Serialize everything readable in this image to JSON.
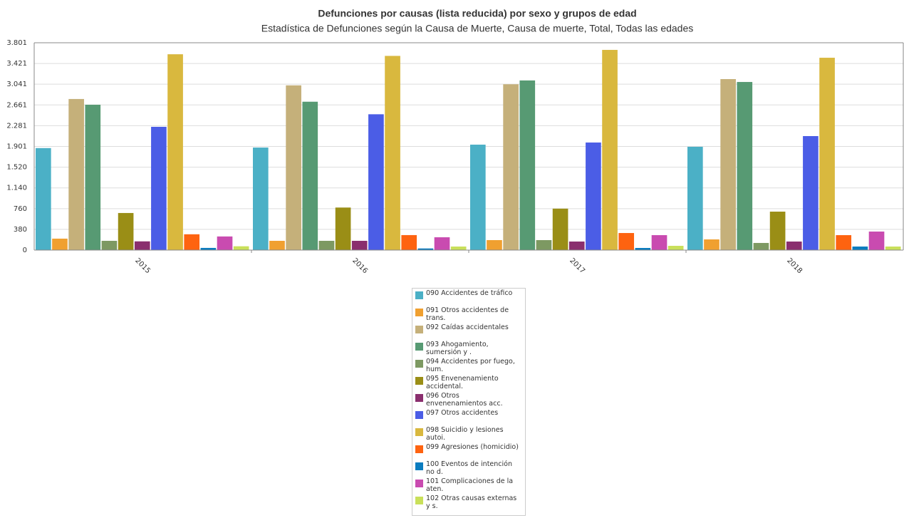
{
  "chart_data": {
    "type": "bar",
    "title": "Defunciones por causas (lista reducida) por sexo y grupos de edad",
    "subtitle": "Estadística de Defunciones según la Causa de Muerte, Causa de muerte, Total, Todas las edades",
    "categories": [
      "2015",
      "2016",
      "2017",
      "2018"
    ],
    "ylim": [
      0,
      3801
    ],
    "yticks": [
      0,
      380,
      760,
      {
        "value": 1140,
        "label": "1.140"
      },
      {
        "value": 1520,
        "label": "1.520"
      },
      {
        "value": 1901,
        "label": "1.901"
      },
      {
        "value": 2281,
        "label": "2.281"
      },
      {
        "value": 2661,
        "label": "2.661"
      },
      {
        "value": 3041,
        "label": "3.041"
      },
      {
        "value": 3421,
        "label": "3.421"
      },
      {
        "value": 3801,
        "label": "3.801"
      }
    ],
    "grid": true,
    "series": [
      {
        "name": "090  Accidentes de tráfico",
        "color": "#4bb0c6",
        "values": [
          1870,
          1880,
          1933,
          1894
        ]
      },
      {
        "name": "091  Otros accidentes de trans.",
        "color": "#f0a030",
        "values": [
          210,
          170,
          183,
          196
        ]
      },
      {
        "name": "092  Caídas accidentales",
        "color": "#c5b07a",
        "values": [
          2770,
          3020,
          3040,
          3135
        ]
      },
      {
        "name": "093 Ahogamiento, sumersión y .",
        "color": "#579a73",
        "values": [
          2665,
          2720,
          3110,
          3082
        ]
      },
      {
        "name": "094 Accidentes por fuego, hum.",
        "color": "#7d9962",
        "values": [
          170,
          170,
          183,
          131
        ]
      },
      {
        "name": "095 Envenenamiento accidental.",
        "color": "#9a8e16",
        "values": [
          680,
          780,
          760,
          705
        ]
      },
      {
        "name": "096 Otros envenenamientos acc.",
        "color": "#8a2f6e",
        "values": [
          160,
          170,
          157,
          157
        ]
      },
      {
        "name": "097  Otros accidentes",
        "color": "#4b5de6",
        "values": [
          2260,
          2490,
          1972,
          2090
        ]
      },
      {
        "name": "098  Suicidio y lesiones autoi.",
        "color": "#d9b83e",
        "values": [
          3590,
          3560,
          3670,
          3526
        ]
      },
      {
        "name": "099  Agresiones (homicidio)",
        "color": "#fe6310",
        "values": [
          290,
          275,
          313,
          274
        ]
      },
      {
        "name": "100  Eventos de intención no d.",
        "color": "#0a7cbf",
        "values": [
          40,
          30,
          39,
          65
        ]
      },
      {
        "name": "101 Complicaciones de la aten.",
        "color": "#c94bb0",
        "values": [
          250,
          235,
          274,
          340
        ]
      },
      {
        "name": "102  Otras causas externas y s.",
        "color": "#c9e05a",
        "values": [
          70,
          65,
          78,
          65
        ]
      }
    ]
  }
}
